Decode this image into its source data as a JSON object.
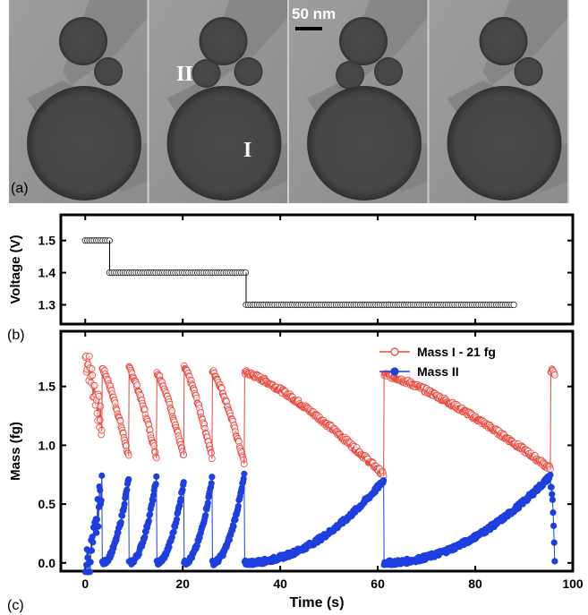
{
  "panel_a": {
    "label": "(a)",
    "scale_bar": "50 nm",
    "particle_I": "I",
    "particle_II": "II",
    "frames": 4
  },
  "chart_data": [
    {
      "panel": "(b)",
      "type": "scatter",
      "ylabel": "Voltage (V)",
      "xlabel": "",
      "xlim": [
        -5,
        100
      ],
      "ylim": [
        1.24,
        1.58
      ],
      "yticks": [
        "1.3",
        "1.4",
        "1.5"
      ],
      "series": [
        {
          "segments": [
            {
              "x_start": 0,
              "x_end": 5,
              "y": 1.5
            },
            {
              "x_start": 5,
              "x_end": 33,
              "y": 1.4
            },
            {
              "x_start": 33,
              "x_end": 88,
              "y": 1.3
            }
          ],
          "marker": "open-circle",
          "color": "#000000"
        }
      ]
    },
    {
      "panel": "(c)",
      "type": "scatter",
      "xlabel": "Time (s)",
      "ylabel": "Mass (fg)",
      "xlim": [
        -5,
        100
      ],
      "ylim": [
        -0.07,
        1.97
      ],
      "xticks": [
        "0",
        "20",
        "40",
        "60",
        "80",
        "100"
      ],
      "yticks": [
        "0.0",
        "0.5",
        "1.0",
        "1.5"
      ],
      "legend_position": "top-right",
      "series": [
        {
          "name": "Mass I - 21 fg",
          "color": "#e8453c",
          "marker": "open-circle",
          "cycles": [
            {
              "t0": 0.0,
              "t1": 3.4,
              "start": 1.75,
              "end": 1.15,
              "noisy": true
            },
            {
              "t0": 3.5,
              "t1": 8.9,
              "start": 1.65,
              "end": 0.9
            },
            {
              "t0": 9.0,
              "t1": 14.6,
              "start": 1.65,
              "end": 0.9
            },
            {
              "t0": 14.7,
              "t1": 20.2,
              "start": 1.62,
              "end": 0.9
            },
            {
              "t0": 20.3,
              "t1": 26.0,
              "start": 1.66,
              "end": 0.9
            },
            {
              "t0": 26.1,
              "t1": 32.6,
              "start": 1.63,
              "end": 0.85
            },
            {
              "t0": 32.7,
              "t1": 61.2,
              "start": 1.62,
              "end": 0.75
            },
            {
              "t0": 61.3,
              "t1": 95.4,
              "start": 1.6,
              "end": 0.8
            },
            {
              "t0": 95.5,
              "t1": 96.3,
              "start": 1.64,
              "end": 1.6
            }
          ]
        },
        {
          "name": "Mass II",
          "color": "#1f3fe0",
          "marker": "filled-circle",
          "cycles": [
            {
              "t0": 0.0,
              "t1": 3.4,
              "start": 0.0,
              "end": 0.72,
              "noisy": true
            },
            {
              "t0": 3.5,
              "t1": 8.9,
              "start": 0.0,
              "end": 0.72
            },
            {
              "t0": 9.0,
              "t1": 14.6,
              "start": 0.0,
              "end": 0.72
            },
            {
              "t0": 14.7,
              "t1": 20.2,
              "start": 0.0,
              "end": 0.7
            },
            {
              "t0": 20.3,
              "t1": 26.0,
              "start": 0.0,
              "end": 0.72
            },
            {
              "t0": 26.1,
              "t1": 32.6,
              "start": 0.0,
              "end": 0.74
            },
            {
              "t0": 32.7,
              "t1": 61.2,
              "start": 0.0,
              "end": 0.7
            },
            {
              "t0": 61.3,
              "t1": 95.4,
              "start": 0.0,
              "end": 0.74
            },
            {
              "t0": 95.5,
              "t1": 96.3,
              "start": 0.65,
              "end": 0.0
            }
          ]
        }
      ]
    }
  ]
}
